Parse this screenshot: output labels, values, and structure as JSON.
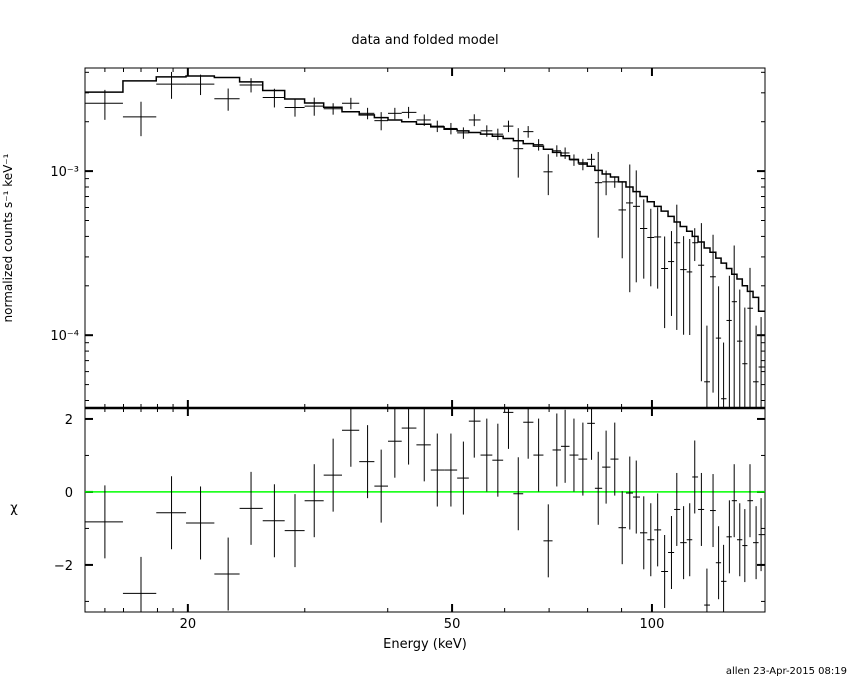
{
  "title": "data and folded model",
  "footer": "allen 23-Apr-2015 08:19",
  "colors": {
    "data": "#000000",
    "model": "#000000",
    "zero_line": "#00ff00",
    "background": "#ffffff"
  },
  "chart_data": [
    {
      "type": "line",
      "panel": "top",
      "ylabel": "normalized counts s⁻¹ keV⁻¹",
      "xscale": "log",
      "yscale": "log",
      "xlim": [
        14,
        148
      ],
      "ylim": [
        3.6e-05,
        0.00425
      ],
      "yticks": [
        {
          "value": 0.001,
          "label": "10⁻³"
        },
        {
          "value": 0.0001,
          "label": "10⁻⁴"
        }
      ],
      "energy": [
        15.0,
        17.0,
        18.9,
        20.9,
        23.0,
        24.9,
        27.0,
        29.0,
        31.0,
        33.1,
        35.2,
        37.3,
        39.1,
        41.0,
        43.0,
        45.4,
        47.5,
        49.8,
        52.0,
        54.0,
        56.4,
        58.6,
        60.8,
        62.9,
        65.1,
        67.5,
        69.8,
        71.9,
        74.0,
        76.3,
        78.7,
        81.1,
        83.0,
        85.3,
        87.9,
        90.2,
        92.6,
        94.7,
        97.2,
        99.6,
        102,
        104.5,
        107,
        109,
        111.6,
        114,
        116,
        118.7,
        121,
        123.6,
        126,
        128.2,
        130.8,
        133,
        135.6,
        138,
        140.5,
        143.5,
        146
      ],
      "data": [
        0.00259,
        0.00214,
        0.00339,
        0.00339,
        0.00276,
        0.00335,
        0.00281,
        0.00244,
        0.00249,
        0.0024,
        0.00259,
        0.00225,
        0.00203,
        0.00225,
        0.00228,
        0.00205,
        0.00188,
        0.00182,
        0.00171,
        0.00205,
        0.00176,
        0.00168,
        0.00188,
        0.00137,
        0.00174,
        0.00145,
        0.00099,
        0.00133,
        0.00129,
        0.00117,
        0.0011,
        0.00118,
        0.00085,
        0.00086,
        0.00086,
        0.00058,
        0.00064,
        0.00061,
        0.000447,
        0.000394,
        0.000397,
        0.000255,
        0.000281,
        0.000366,
        0.000251,
        0.000243,
        0.000366,
        0.000267,
        5.2e-05,
        0.000227,
        9.6e-05,
        4.1e-05,
        0.000123,
        0.00016,
        9.2e-05,
        6.7e-05,
        0.000146,
        5.2e-05,
        6.4e-05
      ],
      "model": [
        0.00303,
        0.00355,
        0.00375,
        0.0038,
        0.00372,
        0.0035,
        0.0031,
        0.00275,
        0.0026,
        0.00245,
        0.0023,
        0.0022,
        0.00212,
        0.00205,
        0.002,
        0.00193,
        0.00186,
        0.0018,
        0.00176,
        0.00172,
        0.00168,
        0.00163,
        0.00158,
        0.00153,
        0.00147,
        0.00142,
        0.00136,
        0.0013,
        0.00124,
        0.00118,
        0.00112,
        0.00107,
        0.00101,
        0.00096,
        0.00092,
        0.00086,
        0.0008,
        0.00075,
        0.0007,
        0.00065,
        0.00061,
        0.00057,
        0.00053,
        0.00049,
        0.00046,
        0.00043,
        0.0004,
        0.00037,
        0.00034,
        0.00032,
        0.000295,
        0.000275,
        0.000255,
        0.000235,
        0.00022,
        0.0002,
        0.000185,
        0.00017,
        0.00014
      ]
    },
    {
      "type": "scatter",
      "panel": "bottom",
      "xlabel": "Energy (keV)",
      "ylabel": "χ",
      "xscale": "log",
      "xlim": [
        14,
        148
      ],
      "ylim": [
        -3.29,
        2.3
      ],
      "xticks": [
        {
          "value": 20,
          "label": "20"
        },
        {
          "value": 50,
          "label": "50"
        },
        {
          "value": 100,
          "label": "100"
        }
      ],
      "yticks": [
        {
          "value": 2,
          "label": "2"
        },
        {
          "value": 0,
          "label": "0"
        },
        {
          "value": -2,
          "label": "−2"
        }
      ],
      "residuals": [
        -0.82,
        -2.78,
        -0.57,
        -0.85,
        -2.25,
        -0.45,
        -0.79,
        -1.06,
        -0.24,
        0.46,
        1.69,
        0.83,
        0.16,
        1.39,
        1.75,
        1.29,
        0.6,
        0.6,
        0.38,
        1.94,
        1.01,
        0.87,
        2.18,
        -0.05,
        1.91,
        1.01,
        -1.34,
        1.15,
        1.25,
        1.01,
        0.9,
        1.88,
        0.1,
        0.68,
        0.9,
        -0.98,
        -0.03,
        -0.14,
        -1.12,
        -1.31,
        -1.04,
        -2.18,
        -1.66,
        -0.48,
        -1.39,
        -1.31,
        0.41,
        -0.48,
        -3.1,
        -0.51,
        -1.94,
        -2.45,
        -1.23,
        -0.24,
        -1.31,
        -1.47,
        -0.24,
        -1.39,
        -1.17
      ],
      "zero_line": 0
    }
  ]
}
